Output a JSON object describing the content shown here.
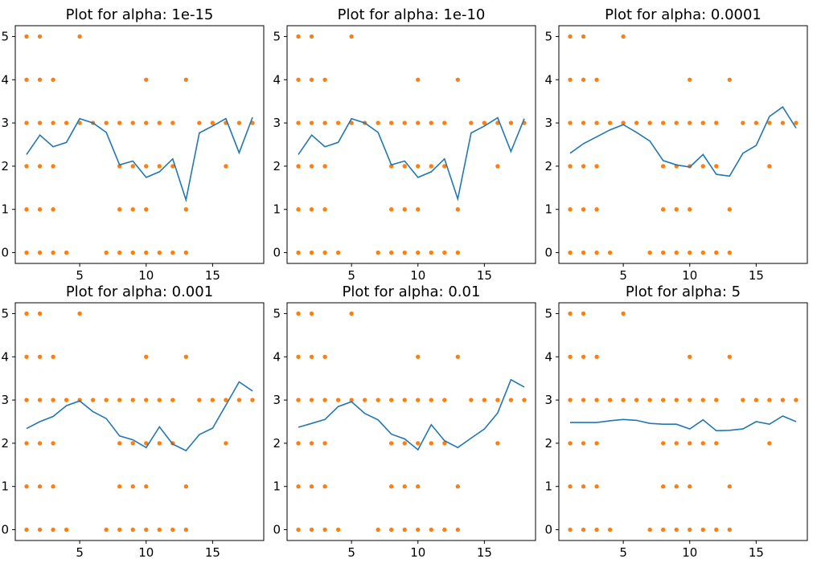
{
  "figure": {
    "background": "#ffffff",
    "line_color": "#1f77b4",
    "point_color": "#ff7f0e"
  },
  "scatter_points": [
    [
      1,
      0
    ],
    [
      2,
      0
    ],
    [
      3,
      0
    ],
    [
      4,
      0
    ],
    [
      7,
      0
    ],
    [
      8,
      0
    ],
    [
      9,
      0
    ],
    [
      10,
      0
    ],
    [
      11,
      0
    ],
    [
      12,
      0
    ],
    [
      13,
      0
    ],
    [
      1,
      1
    ],
    [
      2,
      1
    ],
    [
      3,
      1
    ],
    [
      8,
      1
    ],
    [
      9,
      1
    ],
    [
      10,
      1
    ],
    [
      13,
      1
    ],
    [
      1,
      2
    ],
    [
      2,
      2
    ],
    [
      3,
      2
    ],
    [
      8,
      2
    ],
    [
      9,
      2
    ],
    [
      10,
      2
    ],
    [
      11,
      2
    ],
    [
      12,
      2
    ],
    [
      16,
      2
    ],
    [
      1,
      3
    ],
    [
      2,
      3
    ],
    [
      3,
      3
    ],
    [
      4,
      3
    ],
    [
      5,
      3
    ],
    [
      6,
      3
    ],
    [
      7,
      3
    ],
    [
      8,
      3
    ],
    [
      9,
      3
    ],
    [
      10,
      3
    ],
    [
      11,
      3
    ],
    [
      12,
      3
    ],
    [
      14,
      3
    ],
    [
      15,
      3
    ],
    [
      16,
      3
    ],
    [
      17,
      3
    ],
    [
      18,
      3
    ],
    [
      1,
      4
    ],
    [
      2,
      4
    ],
    [
      3,
      4
    ],
    [
      10,
      4
    ],
    [
      13,
      4
    ],
    [
      1,
      5
    ],
    [
      2,
      5
    ],
    [
      5,
      5
    ]
  ],
  "chart_data": [
    {
      "type": "line+scatter",
      "title": "Plot for alpha: 1e-15",
      "xlim": [
        0.15,
        18.85
      ],
      "ylim": [
        -0.25,
        5.25
      ],
      "xticks": [
        "5",
        "10",
        "15"
      ],
      "yticks": [
        "0",
        "1",
        "2",
        "3",
        "4",
        "5"
      ],
      "line": {
        "x": [
          1,
          2,
          3,
          4,
          5,
          6,
          7,
          8,
          9,
          10,
          11,
          12,
          13,
          14,
          15,
          16,
          17,
          18
        ],
        "y": [
          2.27,
          2.72,
          2.45,
          2.55,
          3.1,
          3.0,
          2.78,
          2.03,
          2.12,
          1.74,
          1.87,
          2.17,
          1.22,
          2.77,
          2.93,
          3.1,
          2.31,
          3.13
        ]
      }
    },
    {
      "type": "line+scatter",
      "title": "Plot for alpha: 1e-10",
      "xlim": [
        0.15,
        18.85
      ],
      "ylim": [
        -0.25,
        5.25
      ],
      "xticks": [
        "5",
        "10",
        "15"
      ],
      "yticks": [
        "0",
        "1",
        "2",
        "3",
        "4",
        "5"
      ],
      "line": {
        "x": [
          1,
          2,
          3,
          4,
          5,
          6,
          7,
          8,
          9,
          10,
          11,
          12,
          13,
          14,
          15,
          16,
          17,
          18
        ],
        "y": [
          2.27,
          2.72,
          2.45,
          2.55,
          3.1,
          3.0,
          2.78,
          2.03,
          2.12,
          1.74,
          1.87,
          2.17,
          1.24,
          2.77,
          2.93,
          3.12,
          2.34,
          3.1
        ]
      }
    },
    {
      "type": "line+scatter",
      "title": "Plot for alpha: 0.0001",
      "xlim": [
        0.15,
        18.85
      ],
      "ylim": [
        -0.25,
        5.25
      ],
      "xticks": [
        "5",
        "10",
        "15"
      ],
      "yticks": [
        "0",
        "1",
        "2",
        "3",
        "4",
        "5"
      ],
      "line": {
        "x": [
          1,
          2,
          3,
          4,
          5,
          6,
          7,
          8,
          9,
          10,
          11,
          12,
          13,
          14,
          15,
          16,
          17,
          18
        ],
        "y": [
          2.3,
          2.52,
          2.68,
          2.84,
          2.96,
          2.78,
          2.58,
          2.13,
          2.03,
          1.98,
          2.27,
          1.81,
          1.77,
          2.3,
          2.48,
          3.15,
          3.37,
          2.88
        ]
      }
    },
    {
      "type": "line+scatter",
      "title": "Plot for alpha: 0.001",
      "xlim": [
        0.15,
        18.85
      ],
      "ylim": [
        -0.25,
        5.25
      ],
      "xticks": [
        "5",
        "10",
        "15"
      ],
      "yticks": [
        "0",
        "1",
        "2",
        "3",
        "4",
        "5"
      ],
      "line": {
        "x": [
          1,
          2,
          3,
          4,
          5,
          6,
          7,
          8,
          9,
          10,
          11,
          12,
          13,
          14,
          15,
          16,
          17,
          18
        ],
        "y": [
          2.34,
          2.5,
          2.62,
          2.87,
          2.98,
          2.73,
          2.57,
          2.17,
          2.08,
          1.9,
          2.38,
          1.98,
          1.83,
          2.2,
          2.35,
          2.88,
          3.42,
          3.21
        ]
      }
    },
    {
      "type": "line+scatter",
      "title": "Plot for alpha: 0.01",
      "xlim": [
        0.15,
        18.85
      ],
      "ylim": [
        -0.25,
        5.25
      ],
      "xticks": [
        "5",
        "10",
        "15"
      ],
      "yticks": [
        "0",
        "1",
        "2",
        "3",
        "4",
        "5"
      ],
      "line": {
        "x": [
          1,
          2,
          3,
          4,
          5,
          6,
          7,
          8,
          9,
          10,
          11,
          12,
          13,
          14,
          15,
          16,
          17,
          18
        ],
        "y": [
          2.37,
          2.46,
          2.55,
          2.85,
          2.96,
          2.69,
          2.54,
          2.21,
          2.1,
          1.85,
          2.43,
          2.06,
          1.9,
          2.12,
          2.33,
          2.7,
          3.47,
          3.3
        ]
      }
    },
    {
      "type": "line+scatter",
      "title": "Plot for alpha: 5",
      "xlim": [
        0.15,
        18.85
      ],
      "ylim": [
        -0.25,
        5.25
      ],
      "xticks": [
        "5",
        "10",
        "15"
      ],
      "yticks": [
        "0",
        "1",
        "2",
        "3",
        "4",
        "5"
      ],
      "line": {
        "x": [
          1,
          2,
          3,
          4,
          5,
          6,
          7,
          8,
          9,
          10,
          11,
          12,
          13,
          14,
          15,
          16,
          17,
          18
        ],
        "y": [
          2.48,
          2.48,
          2.48,
          2.52,
          2.55,
          2.53,
          2.46,
          2.44,
          2.44,
          2.33,
          2.54,
          2.29,
          2.3,
          2.33,
          2.5,
          2.44,
          2.63,
          2.5
        ]
      }
    }
  ]
}
